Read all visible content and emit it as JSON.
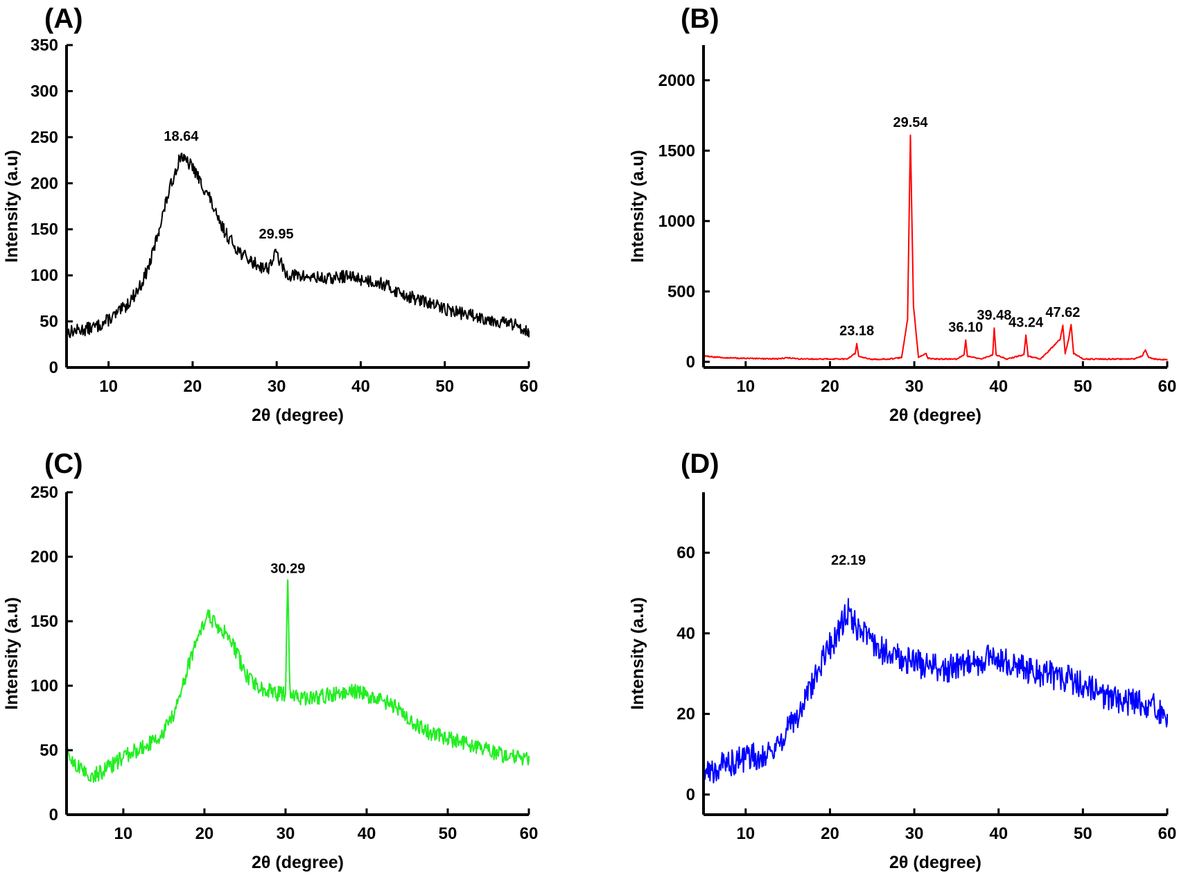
{
  "figure": {
    "panels": [
      {
        "id": "A",
        "label": "(A)"
      },
      {
        "id": "B",
        "label": "(B)"
      },
      {
        "id": "C",
        "label": "(C)"
      },
      {
        "id": "D",
        "label": "(D)"
      }
    ]
  },
  "chart_data": [
    {
      "type": "line",
      "panel": "(A)",
      "xlabel": "2θ (degree)",
      "ylabel": "Intensity (a.u)",
      "xlim": [
        5,
        60
      ],
      "ylim": [
        0,
        350
      ],
      "xticks": [
        10,
        20,
        30,
        40,
        50,
        60
      ],
      "yticks": [
        0,
        50,
        100,
        150,
        200,
        250,
        300,
        350
      ],
      "color": "#000000",
      "annotations": [
        {
          "x": 18.64,
          "y": 237,
          "text": "18.64"
        },
        {
          "x": 29.95,
          "y": 131,
          "text": "29.95"
        }
      ],
      "series": [
        {
          "x": [
            5,
            6,
            7,
            8,
            9,
            10,
            11,
            12,
            13,
            14,
            15,
            16,
            17,
            18,
            18.64,
            19,
            20,
            21,
            22,
            23,
            24,
            25,
            26,
            27,
            28,
            29,
            29.95,
            31,
            32,
            33,
            34,
            35,
            36,
            37,
            38,
            39,
            40,
            41,
            42,
            43,
            44,
            45,
            46,
            47,
            48,
            49,
            50,
            51,
            52,
            53,
            54,
            55,
            56,
            57,
            58,
            59,
            60
          ],
          "values": [
            38,
            40,
            41,
            43,
            46,
            52,
            58,
            66,
            78,
            92,
            115,
            150,
            185,
            215,
            232,
            225,
            218,
            200,
            185,
            160,
            145,
            132,
            122,
            115,
            110,
            108,
            125,
            102,
            100,
            99,
            98,
            97,
            96,
            97,
            99,
            98,
            96,
            94,
            93,
            89,
            84,
            80,
            76,
            73,
            70,
            67,
            64,
            61,
            59,
            57,
            55,
            53,
            51,
            49,
            47,
            44,
            40
          ],
          "noise": 7
        }
      ]
    },
    {
      "type": "line",
      "panel": "(B)",
      "xlabel": "2θ (degree)",
      "ylabel": "Intensity (a.u)",
      "xlim": [
        5,
        60
      ],
      "ylim": [
        -40,
        2250
      ],
      "xticks": [
        10,
        20,
        30,
        40,
        50,
        60
      ],
      "yticks": [
        0,
        500,
        1000,
        1500,
        2000
      ],
      "color": "#ff0000",
      "annotations": [
        {
          "x": 23.18,
          "y": 130,
          "text": "23.18"
        },
        {
          "x": 29.54,
          "y": 1610,
          "text": "29.54"
        },
        {
          "x": 36.1,
          "y": 155,
          "text": "36.10"
        },
        {
          "x": 39.48,
          "y": 240,
          "text": "39.48"
        },
        {
          "x": 43.24,
          "y": 190,
          "text": "43.24"
        },
        {
          "x": 47.62,
          "y": 260,
          "text": "47.62"
        }
      ],
      "series": [
        {
          "x": [
            5,
            6,
            8,
            10,
            12,
            14,
            15,
            16,
            18,
            20,
            22,
            23.0,
            23.18,
            23.4,
            25,
            27,
            28.5,
            29.2,
            29.54,
            29.9,
            30.5,
            31.4,
            31.6,
            33,
            35,
            35.9,
            36.1,
            36.3,
            38,
            39.3,
            39.48,
            39.7,
            41,
            43.0,
            43.24,
            43.5,
            45,
            47.3,
            47.62,
            47.9,
            48.3,
            48.6,
            48.9,
            50,
            52,
            54,
            56,
            57.0,
            57.4,
            57.8,
            58.5,
            60
          ],
          "values": [
            45,
            35,
            28,
            24,
            22,
            22,
            30,
            22,
            20,
            20,
            20,
            60,
            130,
            40,
            18,
            20,
            30,
            300,
            1610,
            400,
            30,
            60,
            25,
            20,
            20,
            50,
            155,
            40,
            20,
            50,
            240,
            50,
            20,
            50,
            190,
            40,
            20,
            160,
            260,
            60,
            160,
            265,
            60,
            20,
            20,
            20,
            20,
            40,
            85,
            30,
            20,
            15
          ],
          "noise": 4
        }
      ]
    },
    {
      "type": "line",
      "panel": "(C)",
      "xlabel": "2θ (degree)",
      "ylabel": "Intensity (a.u)",
      "xlim": [
        3,
        60
      ],
      "ylim": [
        0,
        250
      ],
      "xticks": [
        10,
        20,
        30,
        40,
        50,
        60
      ],
      "yticks": [
        0,
        50,
        100,
        150,
        200,
        250
      ],
      "color": "#22ee22",
      "annotations": [
        {
          "x": 30.29,
          "y": 181,
          "text": "30.29"
        }
      ],
      "series": [
        {
          "x": [
            3,
            4,
            5,
            6,
            7,
            8,
            9,
            10,
            11,
            12,
            13,
            14,
            15,
            16,
            17,
            18,
            19,
            20,
            20.6,
            21,
            22,
            23,
            24,
            25,
            26,
            27,
            28,
            29,
            30.0,
            30.1,
            30.29,
            30.45,
            30.6,
            31,
            32,
            33,
            34,
            35,
            36,
            37,
            38,
            39,
            40,
            41,
            42,
            43,
            44,
            45,
            46,
            47,
            48,
            49,
            50,
            51,
            52,
            53,
            54,
            55,
            56,
            57,
            58,
            59,
            60
          ],
          "values": [
            48,
            40,
            33,
            30,
            32,
            36,
            40,
            44,
            48,
            51,
            54,
            58,
            65,
            75,
            92,
            115,
            135,
            148,
            155,
            150,
            145,
            138,
            125,
            110,
            102,
            98,
            96,
            94,
            93,
            130,
            181,
            120,
            93,
            92,
            91,
            90,
            91,
            92,
            94,
            95,
            96,
            95,
            92,
            90,
            88,
            86,
            82,
            76,
            70,
            66,
            63,
            61,
            59,
            57,
            55,
            54,
            52,
            50,
            48,
            46,
            45,
            43,
            42
          ],
          "noise": 6
        }
      ]
    },
    {
      "type": "line",
      "panel": "(D)",
      "xlabel": "2θ (degree)",
      "ylabel": "Intensity (a.u)",
      "xlim": [
        5,
        60
      ],
      "ylim": [
        -5,
        75
      ],
      "xticks": [
        10,
        20,
        30,
        40,
        50,
        60
      ],
      "yticks": [
        0,
        20,
        40,
        60
      ],
      "color": "#0000ff",
      "annotations": [
        {
          "x": 22.19,
          "y": 55,
          "text": "22.19"
        }
      ],
      "series": [
        {
          "x": [
            5,
            6,
            7,
            8,
            9,
            10,
            11,
            12,
            13,
            14,
            15,
            16,
            17,
            18,
            19,
            20,
            21,
            22.19,
            23,
            24,
            25,
            26,
            27,
            28,
            29,
            30,
            31,
            32,
            33,
            34,
            35,
            36,
            37,
            38,
            39,
            40,
            41,
            42,
            43,
            44,
            45,
            46,
            47,
            48,
            49,
            50,
            51,
            52,
            53,
            54,
            55,
            56,
            57,
            58,
            59,
            60
          ],
          "values": [
            5,
            6,
            7,
            8,
            8.5,
            9,
            9.5,
            10,
            11,
            13,
            16,
            19,
            23,
            28,
            33,
            37,
            40,
            46,
            42,
            40,
            38,
            36,
            35,
            34,
            33,
            33,
            32,
            32,
            31,
            31,
            32,
            32,
            33,
            33,
            34,
            34,
            33,
            32,
            31,
            31,
            30,
            30,
            29,
            29,
            28,
            27,
            26,
            25,
            24,
            24,
            23,
            23,
            22,
            22,
            21,
            20
          ],
          "noise": 3.5
        }
      ]
    }
  ]
}
